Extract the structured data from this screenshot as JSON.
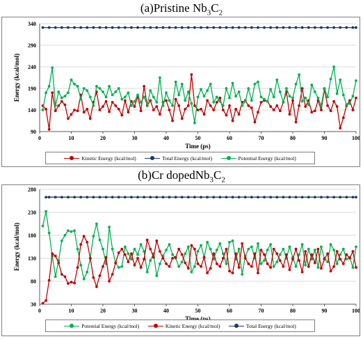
{
  "chart_data": [
    {
      "type": "line",
      "title_main": "(a)Pristine Nb",
      "title_sub1": "3",
      "title_mid": "C",
      "title_sub2": "2",
      "xlabel": "Time (ps)",
      "ylabel": "Energy (kcal/mol)",
      "xlim": [
        0,
        100
      ],
      "ylim": [
        90,
        340
      ],
      "xticks": [
        0,
        10,
        20,
        30,
        40,
        50,
        60,
        70,
        80,
        90,
        100
      ],
      "yticks": [
        90,
        140,
        190,
        240,
        290,
        340
      ],
      "grid": "horizontal",
      "legend_position": "bottom",
      "series": [
        {
          "name": "Kinetic Energy (kcal/mol)",
          "color": "#c00000",
          "x": [
            1,
            2,
            3,
            4,
            5,
            6,
            7,
            8,
            9,
            10,
            11,
            12,
            13,
            14,
            15,
            16,
            17,
            18,
            19,
            20,
            21,
            22,
            23,
            24,
            25,
            26,
            27,
            28,
            29,
            30,
            31,
            32,
            33,
            34,
            35,
            36,
            37,
            38,
            39,
            40,
            41,
            42,
            43,
            44,
            45,
            46,
            47,
            48,
            49,
            50,
            51,
            52,
            53,
            54,
            55,
            56,
            57,
            58,
            59,
            60,
            61,
            62,
            63,
            64,
            65,
            66,
            67,
            68,
            69,
            70,
            71,
            72,
            73,
            74,
            75,
            76,
            77,
            78,
            79,
            80,
            81,
            82,
            83,
            84,
            85,
            86,
            87,
            88,
            89,
            90,
            91,
            92,
            93,
            94,
            95,
            96,
            97,
            98,
            99,
            100
          ],
          "y": [
            150,
            142,
            95,
            180,
            138,
            150,
            160,
            152,
            120,
            130,
            140,
            138,
            175,
            135,
            142,
            120,
            158,
            182,
            140,
            148,
            160,
            136,
            158,
            150,
            142,
            128,
            162,
            135,
            160,
            148,
            172,
            138,
            195,
            150,
            162,
            140,
            148,
            130,
            158,
            162,
            140,
            115,
            165,
            150,
            120,
            142,
            150,
            222,
            150,
            140,
            142,
            130,
            162,
            150,
            140,
            158,
            168,
            140,
            128,
            150,
            115,
            142,
            130,
            158,
            162,
            150,
            145,
            112,
            135,
            158,
            162,
            160,
            148,
            140,
            150,
            138,
            158,
            182,
            130,
            162,
            112,
            150,
            190,
            148,
            162,
            135,
            138,
            162,
            140,
            188,
            150,
            138,
            160,
            148,
            98,
            122,
            150,
            162,
            140,
            168
          ]
        },
        {
          "name": "Total Energy (kcal/mol)",
          "color": "#1f3864",
          "x": [
            1,
            3,
            5,
            7,
            9,
            11,
            13,
            15,
            17,
            19,
            21,
            23,
            25,
            27,
            29,
            31,
            33,
            35,
            37,
            39,
            41,
            43,
            45,
            47,
            49,
            51,
            53,
            55,
            57,
            59,
            61,
            63,
            65,
            67,
            69,
            71,
            73,
            75,
            77,
            79,
            81,
            83,
            85,
            87,
            89,
            91,
            93,
            95,
            97,
            99,
            100
          ],
          "y": [
            331,
            331,
            331,
            331,
            331,
            331,
            331,
            331,
            331,
            331,
            331,
            331,
            331,
            331,
            331,
            331,
            331,
            331,
            331,
            331,
            331,
            331,
            331,
            331,
            331,
            331,
            331,
            331,
            331,
            331,
            331,
            331,
            331,
            331,
            331,
            331,
            331,
            331,
            331,
            331,
            331,
            331,
            331,
            331,
            331,
            331,
            331,
            331,
            331,
            331,
            331
          ]
        },
        {
          "name": "Potential Energy (kcal/mol)",
          "color": "#00b050",
          "x": [
            1,
            2,
            3,
            4,
            5,
            6,
            7,
            8,
            9,
            10,
            11,
            12,
            13,
            14,
            15,
            16,
            17,
            18,
            19,
            20,
            21,
            22,
            23,
            24,
            25,
            26,
            27,
            28,
            29,
            30,
            31,
            32,
            33,
            34,
            35,
            36,
            37,
            38,
            39,
            40,
            41,
            42,
            43,
            44,
            45,
            46,
            47,
            48,
            49,
            50,
            51,
            52,
            53,
            54,
            55,
            56,
            57,
            58,
            59,
            60,
            61,
            62,
            63,
            64,
            65,
            66,
            67,
            68,
            69,
            70,
            71,
            72,
            73,
            74,
            75,
            76,
            77,
            78,
            79,
            80,
            81,
            82,
            83,
            84,
            85,
            86,
            87,
            88,
            89,
            90,
            91,
            92,
            93,
            94,
            95,
            96,
            97,
            98,
            99,
            100
          ],
          "y": [
            140,
            180,
            195,
            238,
            150,
            182,
            168,
            172,
            180,
            210,
            200,
            195,
            165,
            190,
            185,
            170,
            150,
            195,
            190,
            182,
            170,
            195,
            175,
            182,
            190,
            165,
            170,
            180,
            150,
            160,
            175,
            158,
            170,
            152,
            185,
            170,
            158,
            215,
            150,
            180,
            162,
            150,
            205,
            175,
            200,
            162,
            182,
            155,
            110,
            170,
            188,
            172,
            185,
            200,
            158,
            170,
            160,
            150,
            190,
            168,
            202,
            172,
            182,
            150,
            160,
            190,
            162,
            200,
            205,
            170,
            165,
            160,
            188,
            170,
            210,
            182,
            158,
            190,
            172,
            168,
            200,
            222,
            160,
            168,
            152,
            198,
            182,
            168,
            150,
            190,
            170,
            212,
            240,
            178,
            210,
            175,
            152,
            155,
            172,
            208
          ]
        }
      ]
    },
    {
      "type": "line",
      "title_main": "(b)Cr dopedNb",
      "title_sub1": "3",
      "title_mid": "C",
      "title_sub2": "2",
      "xlabel": "Time (ps)",
      "ylabel": "Energy (kcal/mol)",
      "xlim": [
        0,
        100
      ],
      "ylim": [
        30,
        280
      ],
      "xticks": [
        0,
        10,
        20,
        30,
        40,
        50,
        60,
        70,
        80,
        90,
        100
      ],
      "yticks": [
        30,
        80,
        130,
        180,
        230,
        280
      ],
      "grid": "horizontal",
      "legend_position": "bottom",
      "series": [
        {
          "name": "Potential Energy (kcal/mol)",
          "color": "#00b050",
          "x": [
            1,
            2,
            3,
            4,
            5,
            6,
            7,
            8,
            9,
            10,
            11,
            12,
            13,
            14,
            15,
            16,
            17,
            18,
            19,
            20,
            21,
            22,
            23,
            24,
            25,
            26,
            27,
            28,
            29,
            30,
            31,
            32,
            33,
            34,
            35,
            36,
            37,
            38,
            39,
            40,
            41,
            42,
            43,
            44,
            45,
            46,
            47,
            48,
            49,
            50,
            51,
            52,
            53,
            54,
            55,
            56,
            57,
            58,
            59,
            60,
            61,
            62,
            63,
            64,
            65,
            66,
            67,
            68,
            69,
            70,
            71,
            72,
            73,
            74,
            75,
            76,
            77,
            78,
            79,
            80,
            81,
            82,
            83,
            84,
            85,
            86,
            87,
            88,
            89,
            90,
            91,
            92,
            93,
            94,
            95,
            96,
            97,
            98,
            99,
            100
          ],
          "y": [
            200,
            232,
            185,
            135,
            90,
            125,
            168,
            180,
            190,
            188,
            190,
            150,
            115,
            85,
            100,
            130,
            178,
            205,
            170,
            150,
            118,
            198,
            150,
            120,
            110,
            112,
            155,
            140,
            128,
            150,
            138,
            160,
            145,
            100,
            125,
            140,
            92,
            118,
            135,
            148,
            160,
            138,
            130,
            112,
            122,
            140,
            155,
            100,
            112,
            145,
            158,
            132,
            165,
            150,
            128,
            148,
            162,
            140,
            118,
            165,
            168,
            128,
            150,
            95,
            135,
            150,
            155,
            130,
            162,
            118,
            125,
            148,
            160,
            112,
            122,
            138,
            150,
            130,
            155,
            132,
            112,
            138,
            160,
            115,
            150,
            128,
            148,
            110,
            155,
            130,
            122,
            160,
            148,
            118,
            138,
            150,
            128,
            132,
            110,
            155
          ]
        },
        {
          "name": "Kinetic Energy (kcal/mol)",
          "color": "#c00000",
          "x": [
            1,
            2,
            3,
            4,
            5,
            6,
            7,
            8,
            9,
            10,
            11,
            12,
            13,
            14,
            15,
            16,
            17,
            18,
            19,
            20,
            21,
            22,
            23,
            24,
            25,
            26,
            27,
            28,
            29,
            30,
            31,
            32,
            33,
            34,
            35,
            36,
            37,
            38,
            39,
            40,
            41,
            42,
            43,
            44,
            45,
            46,
            47,
            48,
            49,
            50,
            51,
            52,
            53,
            54,
            55,
            56,
            57,
            58,
            59,
            60,
            61,
            62,
            63,
            64,
            65,
            66,
            67,
            68,
            69,
            70,
            71,
            72,
            73,
            74,
            75,
            76,
            77,
            78,
            79,
            80,
            81,
            82,
            83,
            84,
            85,
            86,
            87,
            88,
            89,
            90,
            91,
            92,
            93,
            94,
            95,
            96,
            97,
            98,
            99,
            100
          ],
          "y": [
            32,
            38,
            82,
            140,
            135,
            120,
            95,
            90,
            75,
            78,
            76,
            110,
            160,
            178,
            165,
            130,
            88,
            68,
            92,
            112,
            132,
            80,
            95,
            120,
            142,
            150,
            138,
            122,
            140,
            115,
            130,
            110,
            128,
            170,
            150,
            132,
            168,
            145,
            130,
            118,
            112,
            130,
            132,
            150,
            138,
            120,
            108,
            158,
            150,
            118,
            112,
            132,
            98,
            108,
            140,
            118,
            112,
            130,
            150,
            102,
            98,
            140,
            110,
            162,
            130,
            118,
            112,
            140,
            98,
            148,
            138,
            118,
            110,
            150,
            140,
            125,
            112,
            138,
            105,
            128,
            150,
            125,
            100,
            145,
            112,
            138,
            120,
            150,
            108,
            128,
            140,
            102,
            112,
            145,
            128,
            118,
            138,
            130,
            145,
            110
          ]
        },
        {
          "name": "Total Energy (kcal/mol)",
          "color": "#1f3864",
          "x": [
            2,
            3,
            5,
            7,
            9,
            11,
            13,
            15,
            17,
            19,
            21,
            23,
            25,
            27,
            29,
            31,
            33,
            35,
            37,
            39,
            41,
            43,
            45,
            47,
            49,
            51,
            53,
            55,
            57,
            59,
            61,
            63,
            65,
            67,
            69,
            71,
            73,
            75,
            77,
            79,
            81,
            83,
            85,
            87,
            89,
            91,
            93,
            95,
            97,
            99,
            100
          ],
          "y": [
            263,
            263,
            263,
            263,
            263,
            263,
            263,
            263,
            263,
            263,
            263,
            263,
            263,
            263,
            263,
            263,
            263,
            263,
            263,
            263,
            263,
            263,
            263,
            263,
            263,
            263,
            263,
            263,
            263,
            263,
            263,
            263,
            263,
            263,
            263,
            263,
            263,
            263,
            263,
            263,
            263,
            263,
            263,
            263,
            263,
            263,
            263,
            263,
            263,
            263,
            263
          ]
        }
      ]
    }
  ]
}
